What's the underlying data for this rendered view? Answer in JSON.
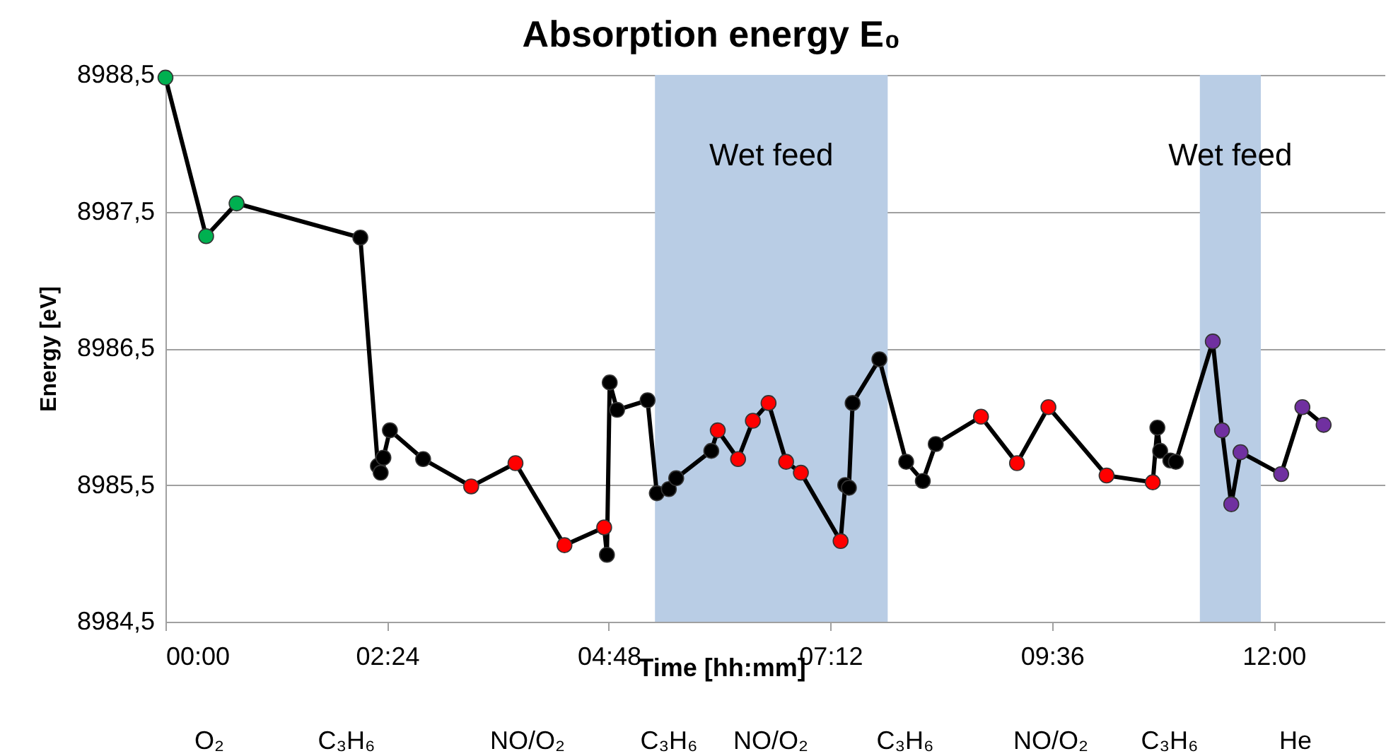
{
  "chart_data": {
    "type": "line",
    "title": "Absorption energy E₀",
    "xlabel": "Time [hh:mm]",
    "ylabel": "Energy [eV]",
    "x": [
      0.0,
      0.44,
      0.77,
      2.11,
      2.3,
      2.33,
      2.36,
      2.43,
      2.79,
      3.31,
      3.79,
      4.32,
      4.75,
      4.78,
      4.81,
      4.89,
      5.22,
      5.32,
      5.45,
      5.53,
      5.91,
      5.98,
      6.2,
      6.36,
      6.53,
      6.72,
      6.88,
      7.31,
      7.36,
      7.4,
      7.44,
      7.73,
      8.02,
      8.2,
      8.34,
      8.83,
      9.22,
      9.56,
      10.19,
      10.69,
      10.74,
      10.77,
      10.88,
      10.94,
      11.34,
      11.44,
      11.54,
      11.64,
      12.08,
      12.31,
      12.54
    ],
    "series": [
      {
        "color": "#000000",
        "values": [
          8988.48,
          8987.32,
          8987.56,
          8987.31,
          8985.64,
          8985.59,
          8985.7,
          8985.9,
          8985.69,
          8985.49,
          8985.66,
          8985.06,
          8985.19,
          8984.99,
          8986.25,
          8986.05,
          8986.12,
          8985.44,
          8985.47,
          8985.55,
          8985.75,
          8985.9,
          8985.69,
          8985.97,
          8986.1,
          8985.67,
          8985.59,
          8985.09,
          8985.5,
          8985.48,
          8986.1,
          8986.42,
          8985.67,
          8985.53,
          8985.8,
          8986.0,
          8985.66,
          8986.07,
          8985.57,
          8985.52,
          8985.92,
          8985.75,
          8985.68,
          8985.67,
          8986.55,
          8985.9,
          8985.36,
          8985.74,
          8985.58,
          8986.07,
          8985.94
        ],
        "colors": [
          "#00b050",
          "#00b050",
          "#00b050",
          "#000000",
          "#000000",
          "#000000",
          "#000000",
          "#000000",
          "#000000",
          "#ff0000",
          "#ff0000",
          "#ff0000",
          "#ff0000",
          "#000000",
          "#000000",
          "#000000",
          "#000000",
          "#000000",
          "#000000",
          "#000000",
          "#000000",
          "#ff0000",
          "#ff0000",
          "#ff0000",
          "#ff0000",
          "#ff0000",
          "#ff0000",
          "#ff0000",
          "#000000",
          "#000000",
          "#000000",
          "#000000",
          "#000000",
          "#000000",
          "#000000",
          "#ff0000",
          "#ff0000",
          "#ff0000",
          "#ff0000",
          "#ff0000",
          "#000000",
          "#000000",
          "#000000",
          "#000000",
          "#7030a0",
          "#7030a0",
          "#7030a0",
          "#7030a0",
          "#7030a0",
          "#7030a0",
          "#7030a0"
        ]
      }
    ],
    "xlim": [
      0,
      13.2
    ],
    "xticks": [
      {
        "value": 0,
        "label": "00:00"
      },
      {
        "value": 2.4,
        "label": "02:24"
      },
      {
        "value": 4.8,
        "label": "04:48"
      },
      {
        "value": 7.2,
        "label": "07:12"
      },
      {
        "value": 9.6,
        "label": "09:36"
      },
      {
        "value": 12,
        "label": "12:00"
      }
    ],
    "ylim": [
      8984.5,
      8988.5
    ],
    "yticks": [
      {
        "value": 8984.5,
        "label": "8984,5"
      },
      {
        "value": 8985.5,
        "label": "8985,5"
      },
      {
        "value": 8986.5,
        "label": "8986,5"
      },
      {
        "value": 8987.5,
        "label": "8987,5"
      },
      {
        "value": 8988.5,
        "label": "8988,5"
      }
    ],
    "bands": [
      {
        "axis": "x",
        "from": 5.3,
        "to": 7.82,
        "label": "Wet feed",
        "color": "#b9cde5"
      },
      {
        "axis": "x",
        "from": 11.2,
        "to": 11.86,
        "label": "Wet feed",
        "color": "#b9cde5"
      }
    ],
    "annotations": [
      "O₂",
      "C₃H₆",
      "NO/O₂",
      "C₃H₆",
      "NO/O₂",
      "C₃H₆",
      "NO/O₂",
      "C₃H₆",
      "He"
    ],
    "grid": "y",
    "marker": "circle",
    "line_style": "solid"
  }
}
